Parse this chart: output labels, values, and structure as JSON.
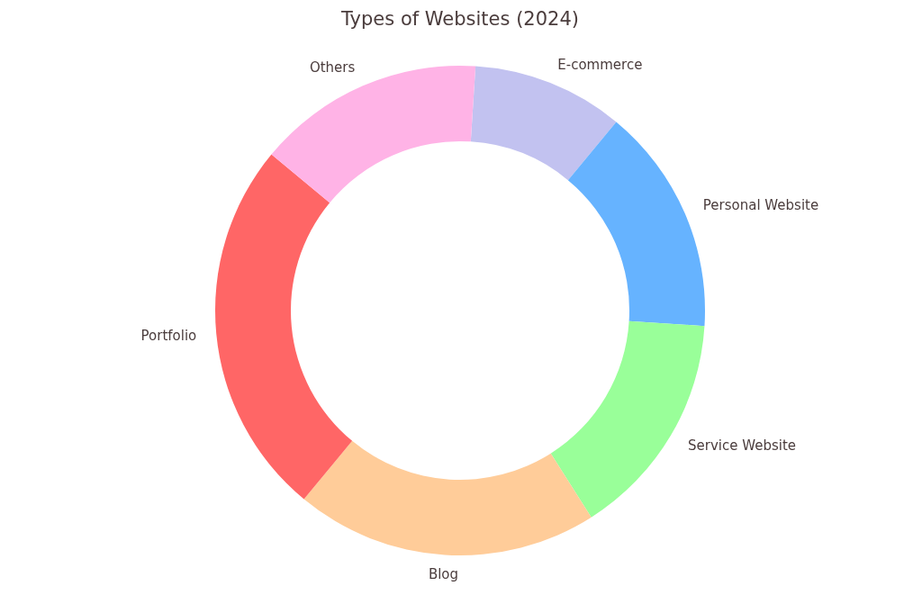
{
  "chart_data": {
    "type": "donut",
    "title": "Types of Websites (2024)",
    "categories": [
      "E-commerce",
      "Personal Website",
      "Service Website",
      "Blog",
      "Portfolio",
      "Others"
    ],
    "values": [
      10,
      15,
      15,
      20,
      25,
      15
    ],
    "colors": [
      "#c2c2f0",
      "#66b3ff",
      "#99ff99",
      "#ffcc99",
      "#ff6666",
      "#ffb3e6"
    ]
  }
}
